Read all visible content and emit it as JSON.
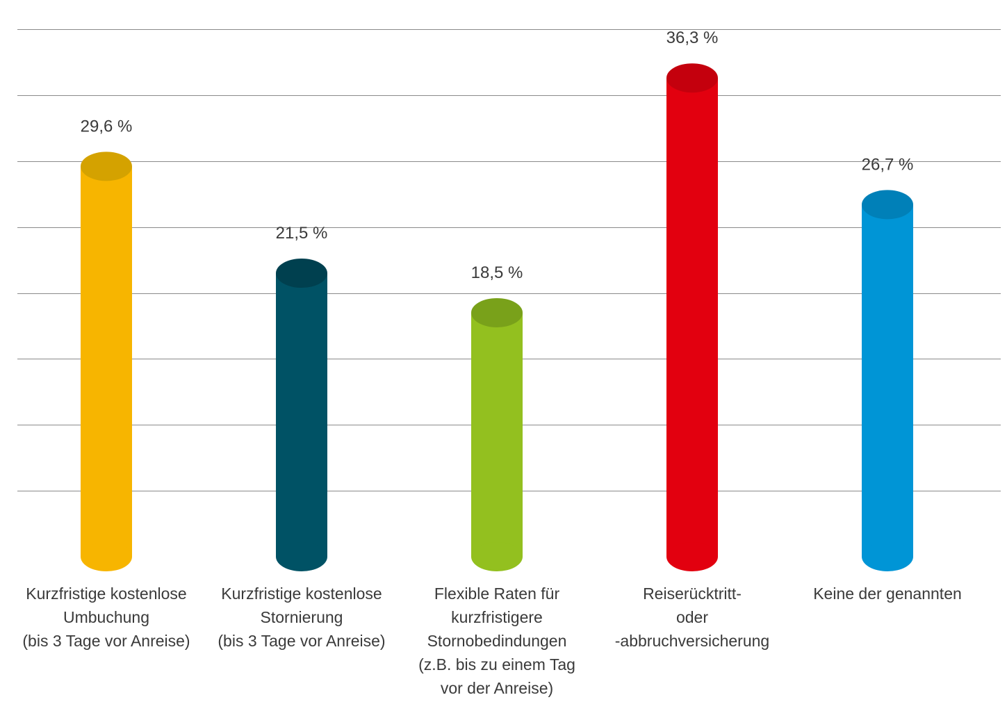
{
  "chart_data": {
    "type": "bar",
    "categories": [
      [
        "Kurzfristige kostenlose",
        "Umbuchung",
        "(bis 3 Tage vor Anreise)"
      ],
      [
        "Kurzfristige kostenlose",
        "Stornierung",
        "(bis 3 Tage vor Anreise)"
      ],
      [
        "Flexible Raten für",
        "kurzfristigere",
        "Stornobedindungen",
        "(z.B. bis zu einem Tag",
        "vor der Anreise)"
      ],
      [
        "Reiserücktritt-",
        "oder",
        "-abbruchversicherung"
      ],
      [
        "Keine der genannten"
      ]
    ],
    "values": [
      29.6,
      21.5,
      18.5,
      36.3,
      26.7
    ],
    "value_labels": [
      "29,6 %",
      "21,5 %",
      "18,5 %",
      "36,3 %",
      "26,7 %"
    ],
    "colors": [
      "#f7b500",
      "#005265",
      "#93c01f",
      "#e2000f",
      "#0095d6"
    ],
    "top_colors": [
      "#d4a200",
      "#00404f",
      "#79a11a",
      "#c4000d",
      "#0080b8"
    ],
    "ylim": [
      0,
      40
    ],
    "gridlines": [
      5,
      10,
      15,
      20,
      25,
      30,
      35,
      40
    ],
    "grid": true,
    "legend": "none",
    "title": "",
    "xlabel": "",
    "ylabel": ""
  }
}
